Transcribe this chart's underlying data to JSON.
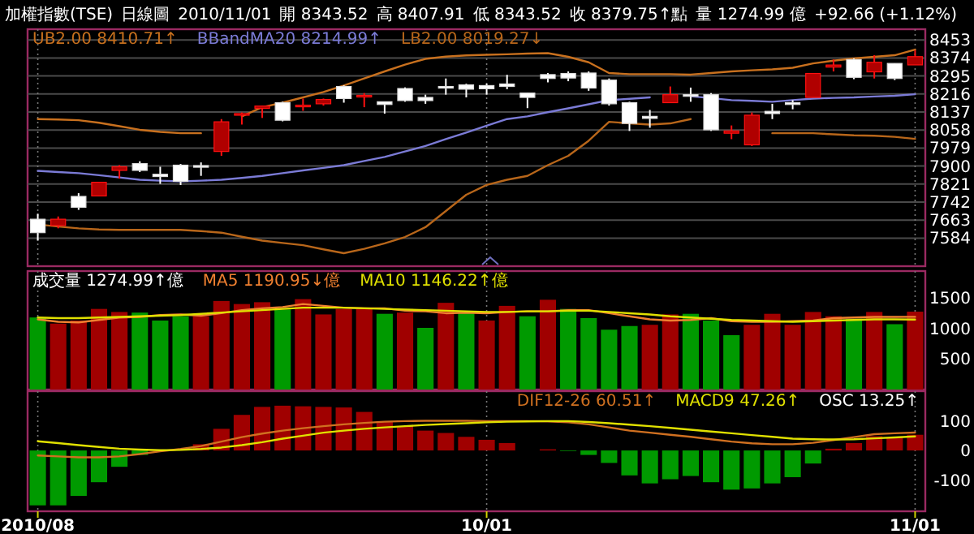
{
  "chart_data": [
    {
      "type": "candlestick",
      "title": "加權指數(TSE)",
      "subtitle": "日線圖",
      "annotations": [
        "2010/11/01",
        "開 8343.52",
        "高 8407.91",
        "低 8343.52",
        "收 8379.75↑點",
        "量 1274.99 億",
        "+92.66 (+1.12%)"
      ],
      "categories": [
        null,
        null,
        null,
        null,
        null,
        null,
        null,
        null,
        null,
        null,
        null,
        null,
        null,
        null,
        null,
        null,
        null,
        null,
        null,
        null,
        null,
        null,
        null,
        null,
        null,
        null,
        null,
        null,
        null,
        null,
        null,
        null,
        null,
        null,
        null,
        null,
        null,
        null,
        null,
        null,
        null,
        null,
        null,
        null
      ],
      "ohlc": [
        [
          7667,
          7691,
          7573,
          7608
        ],
        [
          7639,
          7679,
          7627,
          7667
        ],
        [
          7767,
          7781,
          7708,
          7719
        ],
        [
          7769,
          7829,
          7769,
          7829
        ],
        [
          7881,
          7904,
          7845,
          7897
        ],
        [
          7911,
          7921,
          7874,
          7881
        ],
        [
          7864,
          7897,
          7822,
          7854
        ],
        [
          7904,
          7909,
          7817,
          7833
        ],
        [
          7902,
          7916,
          7857,
          7897
        ],
        [
          7964,
          8106,
          7945,
          8094
        ],
        [
          8123,
          8135,
          8082,
          8130
        ],
        [
          8153,
          8165,
          8111,
          8163
        ],
        [
          8178,
          8182,
          8096,
          8101
        ],
        [
          8163,
          8196,
          8142,
          8167
        ],
        [
          8173,
          8196,
          8165,
          8192
        ],
        [
          8249,
          8254,
          8178,
          8196
        ],
        [
          8206,
          8220,
          8158,
          8210
        ],
        [
          8182,
          8182,
          8130,
          8170
        ],
        [
          8240,
          8245,
          8182,
          8187
        ],
        [
          8201,
          8213,
          8173,
          8187
        ],
        [
          8249,
          8284,
          8213,
          8244
        ],
        [
          8256,
          8261,
          8201,
          8237
        ],
        [
          8253,
          8261,
          8213,
          8239
        ],
        [
          8260,
          8300,
          8237,
          8249
        ],
        [
          8220,
          8220,
          8154,
          8201
        ],
        [
          8301,
          8308,
          8267,
          8284
        ],
        [
          8306,
          8315,
          8272,
          8286
        ],
        [
          8308,
          8315,
          8230,
          8242
        ],
        [
          8277,
          8284,
          8165,
          8173
        ],
        [
          8178,
          8182,
          8054,
          8087
        ],
        [
          8118,
          8146,
          8068,
          8109
        ],
        [
          8178,
          8249,
          8178,
          8213
        ],
        [
          8213,
          8244,
          8182,
          8206
        ],
        [
          8213,
          8220,
          8054,
          8059
        ],
        [
          8044,
          8078,
          8018,
          8054
        ],
        [
          7993,
          8135,
          7988,
          8123
        ],
        [
          8140,
          8173,
          8106,
          8130
        ],
        [
          8178,
          8189,
          8149,
          8170
        ],
        [
          8201,
          8306,
          8201,
          8306
        ],
        [
          8334,
          8367,
          8315,
          8343
        ],
        [
          8367,
          8372,
          8281,
          8289
        ],
        [
          8313,
          8386,
          8284,
          8355
        ],
        [
          8350,
          8350,
          8277,
          8284
        ],
        [
          8343.52,
          8407.91,
          8343.52,
          8379.75
        ]
      ],
      "colors": [
        "#ffffff",
        "#b00000",
        "#ffffff",
        "#b00000",
        "#b00000",
        "#ffffff",
        "#ffffff",
        "#ffffff",
        "#ffffff",
        "#b00000",
        "#b00000",
        "#b00000",
        "#ffffff",
        "#b00000",
        "#b00000",
        "#ffffff",
        "#b00000",
        "#ffffff",
        "#ffffff",
        "#ffffff",
        "#ffffff",
        "#ffffff",
        "#ffffff",
        "#ffffff",
        "#ffffff",
        "#ffffff",
        "#ffffff",
        "#ffffff",
        "#ffffff",
        "#ffffff",
        "#ffffff",
        "#b00000",
        "#ffffff",
        "#ffffff",
        "#b00000",
        "#b00000",
        "#ffffff",
        "#ffffff",
        "#b00000",
        "#b00000",
        "#ffffff",
        "#b00000",
        "#ffffff",
        "#b00000"
      ],
      "series": [
        {
          "type": "line",
          "name": "UB2.00 8410.71↑",
          "color": "#c8701e",
          "values": [
            8106,
            8104,
            8101,
            8090,
            8075,
            8059,
            8050,
            8044,
            8044,
            null,
            8118,
            8158,
            8178,
            8201,
            8225,
            8253,
            8284,
            8315,
            8345,
            8370,
            8380,
            8385,
            8388,
            8390,
            8393,
            8395,
            8379,
            8355,
            8308,
            8303,
            8303,
            8303,
            8301,
            8308,
            8315,
            8320,
            8324,
            8331,
            8350,
            8362,
            8372,
            8379,
            8386,
            8410.71
          ]
        },
        {
          "type": "line",
          "name": "BBandMA20 8214.99↑",
          "color": "#7b7bd6",
          "values": [
            7879,
            7874,
            7869,
            7860,
            7850,
            7840,
            7836,
            7833,
            7836,
            7840,
            7848,
            7857,
            7869,
            7881,
            7892,
            7904,
            7922,
            7940,
            7964,
            7988,
            8018,
            8047,
            8077,
            8106,
            8118,
            8136,
            8153,
            8171,
            8189,
            8195,
            8201,
            null,
            8206,
            8198,
            8189,
            8186,
            8182,
            8189,
            8196,
            8199,
            8201,
            8205,
            8208,
            8214.99
          ]
        },
        {
          "type": "line",
          "name": "LB2.00 8019.27↓",
          "color": "#b8661a",
          "values": [
            7644,
            7635,
            7627,
            7622,
            7620,
            7620,
            7620,
            7620,
            7615,
            7608,
            7590,
            7573,
            7563,
            7553,
            7535,
            7518,
            7537,
            7561,
            7589,
            7632,
            7703,
            7774,
            7817,
            7840,
            7857,
            7904,
            7945,
            8011,
            8094,
            8087,
            8082,
            8087,
            8106,
            null,
            null,
            null,
            8044,
            8044,
            8044,
            8039,
            8035,
            8033,
            8028,
            8019.27
          ]
        }
      ],
      "ylim": [
        7461,
        8500
      ],
      "yticks": [
        7584,
        7663,
        7742,
        7821,
        7900,
        7979,
        8058,
        8137,
        8216,
        8295,
        8374,
        8453
      ],
      "grid": true,
      "legend": "top left",
      "tick_labels": "y"
    },
    {
      "type": "bar",
      "categories": [
        null,
        null,
        null,
        null,
        null,
        null,
        null,
        null,
        null,
        null,
        null,
        null,
        null,
        null,
        null,
        null,
        null,
        null,
        null,
        null,
        null,
        null,
        null,
        null,
        null,
        null,
        null,
        null,
        null,
        null,
        null,
        null,
        null,
        null,
        null,
        null,
        null,
        null,
        null,
        null,
        null,
        null,
        null,
        null
      ],
      "series": [
        {
          "type": "bar",
          "name": "成交量 1274.99↑億",
          "values": [
            1180,
            1080,
            1130,
            1320,
            1270,
            1260,
            1130,
            1200,
            1200,
            1450,
            1400,
            1430,
            1310,
            1480,
            1230,
            1320,
            1320,
            1240,
            1260,
            1010,
            1420,
            1250,
            1130,
            1370,
            1200,
            1470,
            1320,
            1170,
            980,
            1040,
            1060,
            1230,
            1240,
            1130,
            890,
            1060,
            1240,
            1060,
            1270,
            1200,
            1160,
            1270,
            1070,
            1274.99
          ],
          "colors": [
            "#009a00",
            "#a00000",
            "#a00000",
            "#a00000",
            "#a00000",
            "#009a00",
            "#009a00",
            "#009a00",
            "#a00000",
            "#a00000",
            "#a00000",
            "#a00000",
            "#009a00",
            "#a00000",
            "#a00000",
            "#a00000",
            "#a00000",
            "#009a00",
            "#a00000",
            "#009a00",
            "#a00000",
            "#009a00",
            "#a00000",
            "#a00000",
            "#009a00",
            "#a00000",
            "#009a00",
            "#009a00",
            "#009a00",
            "#009a00",
            "#a00000",
            "#a00000",
            "#009a00",
            "#009a00",
            "#009a00",
            "#a00000",
            "#a00000",
            "#a00000",
            "#a00000",
            "#a00000",
            "#009a00",
            "#a00000",
            "#009a00",
            "#a00000"
          ]
        },
        {
          "type": "line",
          "name": "MA5 1190.95↓億",
          "color": "#f08030",
          "values": [
            1150,
            1110,
            1100,
            1140,
            1180,
            1190,
            1220,
            1230,
            1210,
            1250,
            1300,
            1330,
            1350,
            1400,
            1370,
            1340,
            1330,
            1330,
            1290,
            1280,
            1250,
            1260,
            1250,
            1270,
            1280,
            1280,
            1300,
            1300,
            1250,
            1200,
            1150,
            1130,
            1140,
            1170,
            1120,
            1110,
            1110,
            1120,
            1130,
            1170,
            1180,
            1190,
            1190,
            1190.95
          ]
        },
        {
          "type": "line",
          "name": "MA10 1146.22↑億",
          "color": "#e0e000",
          "values": [
            1180,
            1170,
            1170,
            1180,
            1190,
            1200,
            1210,
            1220,
            1240,
            1260,
            1280,
            1300,
            1320,
            1340,
            1340,
            1340,
            1330,
            1320,
            1310,
            1300,
            1290,
            1280,
            1270,
            1270,
            1280,
            1280,
            1290,
            1290,
            1270,
            1250,
            1230,
            1200,
            1180,
            1160,
            1140,
            1130,
            1120,
            1110,
            1120,
            1130,
            1140,
            1150,
            1150,
            1146.22
          ]
        }
      ],
      "ylim": [
        0,
        1940
      ],
      "yticks": [
        500,
        1000,
        1500
      ],
      "grid": "x",
      "legend": "top left",
      "tick_labels": "y"
    },
    {
      "type": "bar",
      "categories": [
        "2010/08",
        null,
        null,
        null,
        null,
        null,
        null,
        null,
        null,
        null,
        null,
        null,
        null,
        null,
        null,
        null,
        null,
        null,
        null,
        null,
        null,
        null,
        "10/01",
        null,
        null,
        null,
        null,
        null,
        null,
        null,
        null,
        null,
        null,
        null,
        null,
        null,
        null,
        null,
        null,
        null,
        null,
        null,
        null,
        "11/01"
      ],
      "series": [
        {
          "type": "line",
          "name": "DIF12-26 60.51↑",
          "color": "#d07020",
          "values": [
            -17,
            -20,
            -23,
            -23,
            -20,
            -12,
            -3,
            5,
            15,
            30,
            45,
            57,
            67,
            75,
            82,
            88,
            93,
            97,
            99,
            100,
            100,
            100,
            99,
            99,
            99,
            98,
            95,
            88,
            78,
            67,
            60,
            53,
            46,
            38,
            30,
            24,
            21,
            21,
            26,
            35,
            45,
            55,
            58,
            60.51
          ]
        },
        {
          "type": "line",
          "name": "MACD9 47.26↑",
          "color": "#e0e000",
          "values": [
            31,
            25,
            18,
            12,
            6,
            3,
            1,
            2,
            5,
            10,
            18,
            28,
            40,
            50,
            60,
            67,
            73,
            78,
            82,
            86,
            89,
            92,
            95,
            97,
            98,
            99,
            99,
            96,
            92,
            87,
            82,
            76,
            70,
            64,
            58,
            52,
            46,
            40,
            38,
            37,
            38,
            41,
            44,
            47.26
          ]
        },
        {
          "type": "bar",
          "name": "OSC 13.25↑",
          "values": [
            -185,
            -185,
            -153,
            -107,
            -55,
            -15,
            null,
            null,
            21,
            73,
            120,
            147,
            151,
            149,
            147,
            145,
            130,
            99,
            82,
            67,
            59,
            46,
            36,
            25,
            0,
            4,
            -2,
            -15,
            -42,
            -84,
            -111,
            -97,
            -86,
            -107,
            -132,
            -128,
            -111,
            -90,
            -44,
            6,
            25,
            48,
            44,
            53
          ],
          "colors": [
            "#009a00",
            "#009a00",
            "#009a00",
            "#009a00",
            "#009a00",
            "#009a00",
            null,
            null,
            "#a00000",
            "#a00000",
            "#a00000",
            "#a00000",
            "#a00000",
            "#a00000",
            "#a00000",
            "#a00000",
            "#a00000",
            "#a00000",
            "#a00000",
            "#a00000",
            "#a00000",
            "#a00000",
            "#a00000",
            "#a00000",
            "#a00000",
            "#a00000",
            "#009a00",
            "#009a00",
            "#009a00",
            "#009a00",
            "#009a00",
            "#009a00",
            "#009a00",
            "#009a00",
            "#009a00",
            "#009a00",
            "#009a00",
            "#009a00",
            "#009a00",
            "#a00000",
            "#a00000",
            "#a00000",
            "#a00000",
            "#a00000"
          ]
        }
      ],
      "ylim": [
        -205,
        200
      ],
      "yticks": [
        -100,
        0,
        100
      ],
      "grid": "x",
      "legend": "top right"
    }
  ]
}
